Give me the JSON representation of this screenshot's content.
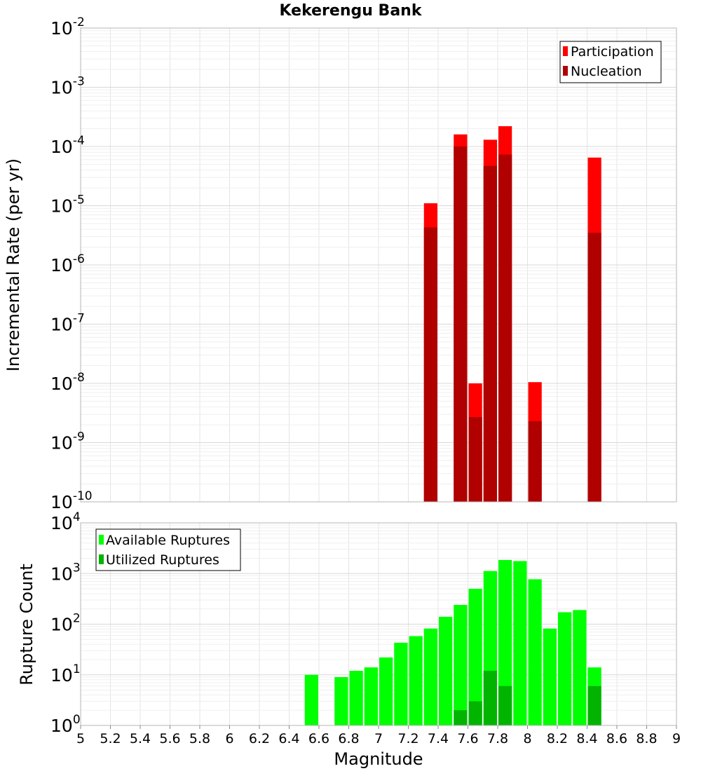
{
  "colors": {
    "participation": "#ff0000",
    "nucleation": "#b00000",
    "available": "#00ff00",
    "utilized": "#00b400",
    "grid": "#e4e4e4",
    "axis": "#b4b4b4"
  },
  "chart_data": [
    {
      "type": "bar",
      "title": "Kekerengu Bank",
      "xlabel": "",
      "ylabel": "Incremental Rate (per yr)",
      "yscale": "log",
      "ylim": [
        1e-10,
        0.01
      ],
      "xlim": [
        5,
        9
      ],
      "bar_width": 0.1,
      "legend": {
        "placement": "top-right",
        "entries": [
          "Participation",
          "Nucleation"
        ]
      },
      "series": [
        {
          "name": "Participation",
          "color": "participation",
          "x": [
            7.35,
            7.55,
            7.65,
            7.75,
            7.85,
            8.05,
            8.45
          ],
          "values": [
            1.1e-05,
            0.00016,
            1e-08,
            0.00013,
            0.00022,
            1.05e-08,
            6.5e-05
          ]
        },
        {
          "name": "Nucleation",
          "color": "nucleation",
          "x": [
            7.35,
            7.55,
            7.65,
            7.75,
            7.85,
            8.05,
            8.45
          ],
          "values": [
            4.3e-06,
            0.0001,
            2.7e-09,
            4.7e-05,
            7.3e-05,
            2.3e-09,
            3.5e-06
          ]
        }
      ]
    },
    {
      "type": "bar",
      "title": "",
      "xlabel": "Magnitude",
      "ylabel": "Rupture Count",
      "yscale": "log",
      "ylim": [
        1,
        10000
      ],
      "xlim": [
        5,
        9
      ],
      "bar_width": 0.1,
      "xticks": [
        "5",
        "5.2",
        "5.4",
        "5.6",
        "5.8",
        "6",
        "6.2",
        "6.4",
        "6.6",
        "6.8",
        "7",
        "7.2",
        "7.4",
        "7.6",
        "7.8",
        "8",
        "8.2",
        "8.4",
        "8.6",
        "8.8",
        "9"
      ],
      "legend": {
        "placement": "top-left",
        "entries": [
          "Available Ruptures",
          "Utilized Ruptures"
        ]
      },
      "series": [
        {
          "name": "Available Ruptures",
          "color": "available",
          "x": [
            6.55,
            6.75,
            6.85,
            6.95,
            7.05,
            7.15,
            7.25,
            7.35,
            7.45,
            7.55,
            7.65,
            7.75,
            7.85,
            7.95,
            8.05,
            8.15,
            8.25,
            8.35,
            8.45
          ],
          "values": [
            10,
            9,
            12,
            14,
            22,
            43,
            58,
            82,
            140,
            240,
            500,
            1120,
            1850,
            1760,
            770,
            82,
            172,
            190,
            14
          ]
        },
        {
          "name": "Utilized Ruptures",
          "color": "utilized",
          "x": [
            7.35,
            7.55,
            7.65,
            7.75,
            7.85,
            8.05,
            8.45
          ],
          "values": [
            1,
            2,
            3,
            12,
            6,
            1,
            6
          ]
        }
      ]
    }
  ]
}
